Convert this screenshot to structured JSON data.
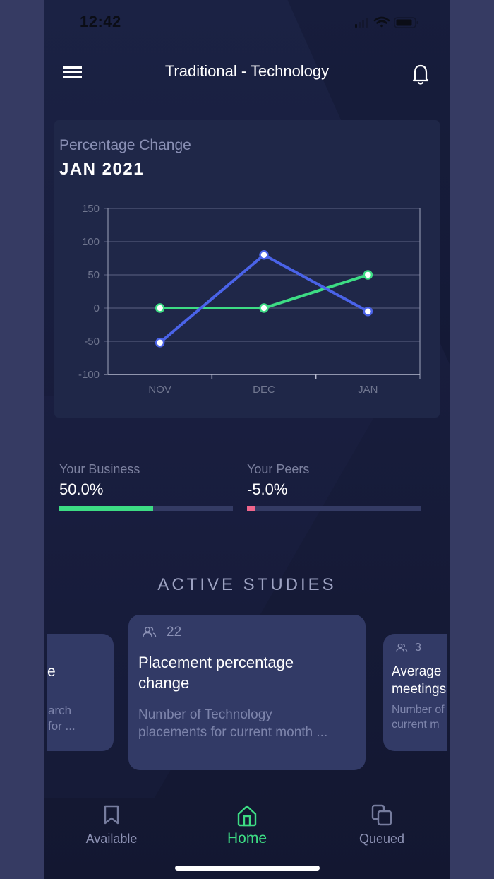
{
  "status_bar": {
    "time": "12:42"
  },
  "header": {
    "title": "Traditional - Technology",
    "menu_icon": "hamburger-menu-icon",
    "bell_icon": "bell-icon"
  },
  "chart_card": {
    "subtitle": "Percentage Change",
    "title": "JAN 2021"
  },
  "chart_data": {
    "type": "line",
    "title": "JAN 2021",
    "subtitle": "Percentage Change",
    "categories": [
      "NOV",
      "DEC",
      "JAN"
    ],
    "series": [
      {
        "name": "Your Business",
        "color": "#3ddc84",
        "values": [
          0,
          0,
          50
        ]
      },
      {
        "name": "Your Peers",
        "color": "#4a63e8",
        "values": [
          -52,
          80,
          -5
        ]
      }
    ],
    "yticks": [
      "150",
      "100",
      "50",
      "0",
      "-50",
      "-100"
    ],
    "ylim": [
      -100,
      150
    ],
    "xlabel": "",
    "ylabel": "",
    "grid": true,
    "legend": "none"
  },
  "stats": {
    "business": {
      "label": "Your Business",
      "value": "50.0%",
      "fill_pct": 54,
      "color": "#3ddc84"
    },
    "peers": {
      "label": "Your Peers",
      "value": "-5.0%",
      "fill_pct": 5,
      "color": "#f0668c"
    }
  },
  "active_studies": {
    "title": "ACTIVE STUDIES",
    "cards": [
      {
        "count": "",
        "title_partial": "e",
        "desc_line1": "arch",
        "desc_line2": "for ..."
      },
      {
        "count": "22",
        "title_line1": "Placement percentage",
        "title_line2": "change",
        "desc_line1": "Number of Technology",
        "desc_line2": "placements for current month ..."
      },
      {
        "count": "3",
        "title_line1": "Average",
        "title_line2": "meetings",
        "desc_line1": "Number of",
        "desc_line2": "current m"
      }
    ]
  },
  "bottom_nav": {
    "items": [
      {
        "label": "Available",
        "icon": "bookmark-icon"
      },
      {
        "label": "Home",
        "icon": "home-icon",
        "active": true
      },
      {
        "label": "Queued",
        "icon": "copy-icon"
      }
    ],
    "active_color": "#3ddc84"
  }
}
